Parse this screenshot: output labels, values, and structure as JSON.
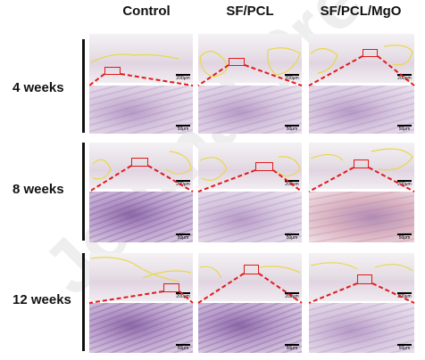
{
  "figure": {
    "watermark": "Journal Pre-proof",
    "columns": [
      "Control",
      "SF/PCL",
      "SF/PCL/MgO"
    ],
    "rows": [
      "4 weeks",
      "8 weeks",
      "12 weeks"
    ],
    "scale_bars": {
      "overview": "200μm",
      "detail": "50μm"
    },
    "colors": {
      "zoom_box": "#e01a1a",
      "outline": "#e8d84a",
      "row_bar": "#111111"
    }
  }
}
